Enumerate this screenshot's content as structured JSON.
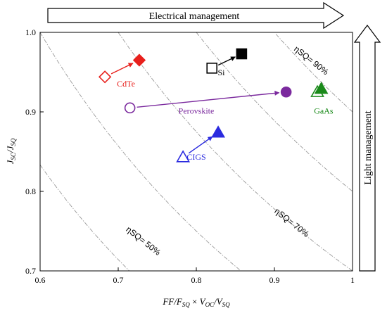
{
  "chart_data": {
    "type": "scatter",
    "xlabel": "FF/FSQ × VOC/VSQ",
    "ylabel": "JSC/JSQ",
    "xlim": [
      0.6,
      1.0
    ],
    "ylim": [
      0.7,
      1.0
    ],
    "x_ticks": [
      "0.6",
      "0.7",
      "0.8",
      "0.9",
      "1"
    ],
    "y_ticks": [
      "0.7",
      "0.8",
      "0.9",
      "1.0"
    ],
    "grid": false,
    "top_arrow_label": "Electrical management",
    "right_arrow_label": "Light management",
    "efficiency_contours": [
      {
        "value": 0.5,
        "label": "ηSQ= 50%",
        "label_at": [
          0.73,
          0.735
        ]
      },
      {
        "value": 0.6,
        "label": "",
        "label_at": null
      },
      {
        "value": 0.7,
        "label": "ηSQ= 70%",
        "label_at": [
          0.92,
          0.758
        ]
      },
      {
        "value": 0.8,
        "label": "",
        "label_at": null
      },
      {
        "value": 0.9,
        "label": "ηSQ= 90%",
        "label_at": [
          0.945,
          0.962
        ]
      }
    ],
    "series": [
      {
        "name": "CdTe",
        "color": "#e8201c",
        "marker": "diamond",
        "label_at": [
          0.71,
          0.932
        ],
        "from": {
          "x": 0.683,
          "y": 0.944
        },
        "to": {
          "x": 0.727,
          "y": 0.965
        }
      },
      {
        "name": "Si",
        "color": "#000000",
        "marker": "square",
        "label_at": [
          0.832,
          0.946
        ],
        "from": {
          "x": 0.82,
          "y": 0.955
        },
        "to": {
          "x": 0.858,
          "y": 0.973
        }
      },
      {
        "name": "Perovskite",
        "color": "#7b2a9e",
        "marker": "circle",
        "label_at": [
          0.8,
          0.898
        ],
        "from": {
          "x": 0.715,
          "y": 0.905
        },
        "to": {
          "x": 0.915,
          "y": 0.925
        }
      },
      {
        "name": "GaAs",
        "color": "#1a8a1a",
        "marker": "triangle",
        "label_at": [
          0.963,
          0.898
        ],
        "from": {
          "x": 0.955,
          "y": 0.925
        },
        "to": {
          "x": 0.96,
          "y": 0.929
        }
      },
      {
        "name": "CIGS",
        "color": "#2b2bdf",
        "marker": "triangle",
        "label_at": [
          0.8,
          0.84
        ],
        "from": {
          "x": 0.783,
          "y": 0.843
        },
        "to": {
          "x": 0.828,
          "y": 0.874
        }
      }
    ]
  }
}
